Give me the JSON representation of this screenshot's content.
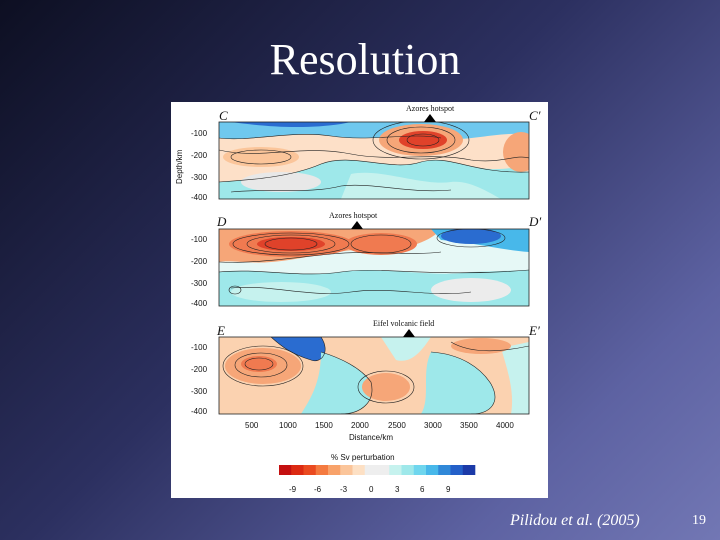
{
  "title": "Resolution",
  "citation": "Pilidou et al. (2005)",
  "page_number": "19",
  "figure": {
    "y_axis_label": "Depth/km",
    "depth_ticks": [
      "-100",
      "-200",
      "-300",
      "-400"
    ],
    "panels": [
      {
        "start": "C",
        "end": "C′",
        "hotspot": "Azores hotspot"
      },
      {
        "start": "D",
        "end": "D′",
        "hotspot": "Azores hotspot"
      },
      {
        "start": "E",
        "end": "E′",
        "hotspot": "Eifel volcanic field"
      }
    ],
    "x_ticks": [
      "500",
      "1000",
      "1500",
      "2000",
      "2500",
      "3000",
      "3500",
      "4000"
    ],
    "x_axis_label": "Distance/km",
    "colorbar": {
      "title": "% Sv perturbation",
      "ticks": [
        "-9",
        "-6",
        "-3",
        "0",
        "3",
        "6",
        "9"
      ],
      "colors": [
        "#c41010",
        "#dc2a12",
        "#ea4a20",
        "#f47a40",
        "#f8a26a",
        "#fbc59a",
        "#fde0c4",
        "#eeeeee",
        "#eeeeee",
        "#c6f2ee",
        "#9ee8ea",
        "#6fd6ee",
        "#48b8ea",
        "#3088d8",
        "#2460c8",
        "#1c3aa8"
      ]
    },
    "palette": {
      "deep_red": "#e0422a",
      "red": "#f07a50",
      "orange": "#f6a678",
      "light_orange": "#fbd2b0",
      "neutral": "#ececec",
      "light_cyan": "#c4f0ee",
      "cyan": "#8ee4ec",
      "blue": "#4aaee6",
      "deep_blue": "#2a6cd0"
    }
  }
}
